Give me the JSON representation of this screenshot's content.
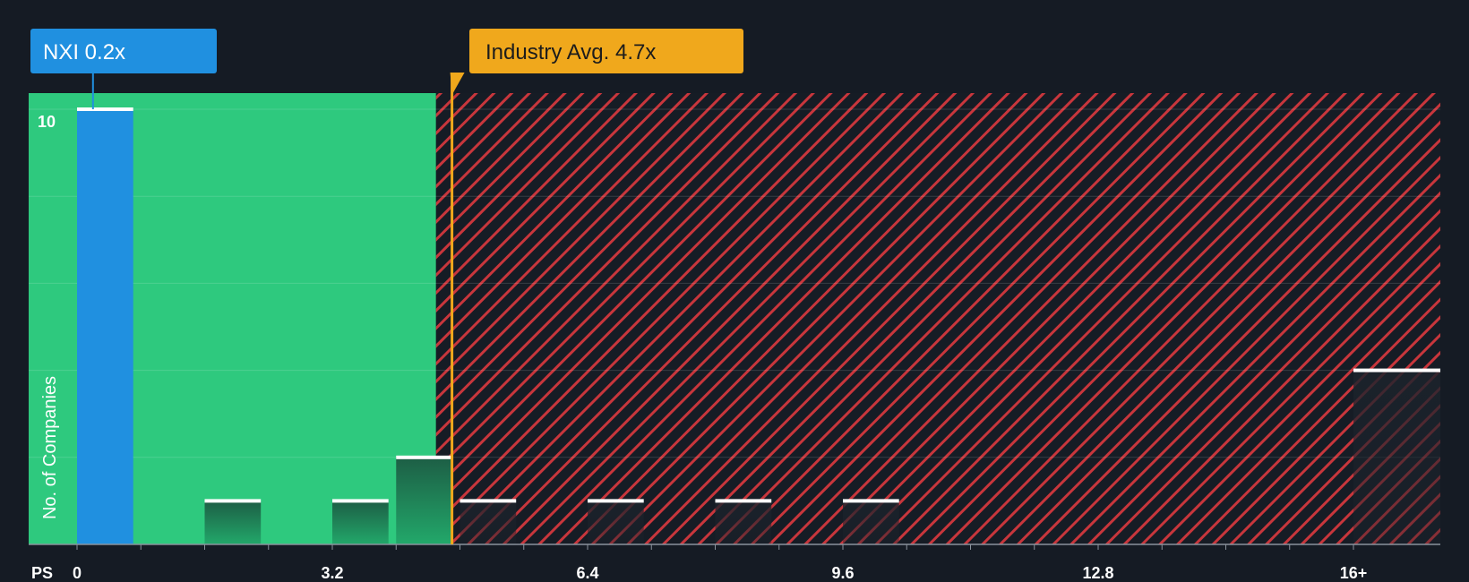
{
  "chart_data": {
    "type": "bar",
    "xlabel": "PS",
    "ylabel": "No. of Companies",
    "x_ticks": [
      "0",
      "3.2",
      "6.4",
      "9.6",
      "12.8",
      "16+"
    ],
    "y_ticks": [
      "10"
    ],
    "xlim": [
      0,
      16.4
    ],
    "ylim": [
      0,
      10.4
    ],
    "bin_width": 0.8,
    "bars": [
      {
        "x": 0.0,
        "value": 10,
        "highlight": true
      },
      {
        "x": 0.8,
        "value": 0
      },
      {
        "x": 1.6,
        "value": 1
      },
      {
        "x": 2.4,
        "value": 0
      },
      {
        "x": 3.2,
        "value": 1
      },
      {
        "x": 4.0,
        "value": 2
      },
      {
        "x": 4.8,
        "value": 1
      },
      {
        "x": 5.6,
        "value": 0
      },
      {
        "x": 6.4,
        "value": 1
      },
      {
        "x": 7.2,
        "value": 0
      },
      {
        "x": 8.0,
        "value": 1
      },
      {
        "x": 8.8,
        "value": 0
      },
      {
        "x": 9.6,
        "value": 1
      },
      {
        "x": 10.4,
        "value": 0
      },
      {
        "x": 11.2,
        "value": 0
      },
      {
        "x": 12.0,
        "value": 0
      },
      {
        "x": 12.8,
        "value": 0
      },
      {
        "x": 13.6,
        "value": 0
      },
      {
        "x": 14.4,
        "value": 0
      },
      {
        "x": 15.2,
        "value": 0
      },
      {
        "x": 16.0,
        "value": 4
      }
    ],
    "company": {
      "label": "NXI 0.2x",
      "value": 0.2
    },
    "industry_avg": {
      "label": "Industry Avg. 4.7x",
      "value": 4.7
    },
    "fair_zone_end": 4.5,
    "grid": true,
    "colors": {
      "background": "#151b24",
      "fair_zone": "#2ec97e",
      "company_bar": "#2090e0",
      "expensive_stripe": "#c8363c",
      "industry_line": "#f0a81c",
      "bar_cap": "#ffffff",
      "text": "#ffffff"
    }
  }
}
